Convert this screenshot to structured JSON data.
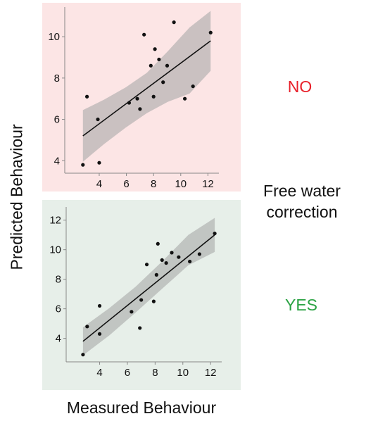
{
  "y_axis_label": "Predicted Behaviour",
  "x_axis_label": "Measured Behaviour",
  "center_label": {
    "line1": "Free water",
    "line2": "correction"
  },
  "panel_labels": {
    "no": {
      "text": "NO",
      "color": "#e8202a"
    },
    "yes": {
      "text": "YES",
      "color": "#2aa243"
    }
  },
  "colors": {
    "top_background": "#fce5e5",
    "bottom_background": "#e7efe9",
    "points": "#111111",
    "fit_line": "#111111",
    "confidence_band": "#a8a8a8"
  },
  "chart_data": [
    {
      "type": "scatter",
      "panel": "NO",
      "xlim": [
        2.5,
        12.6
      ],
      "ylim": [
        3.6,
        11.3
      ],
      "xticks": [
        4,
        6,
        8,
        10,
        12
      ],
      "yticks": [
        4,
        6,
        8,
        10
      ],
      "x": [
        2.8,
        3.1,
        3.9,
        4.0,
        6.2,
        6.8,
        7.0,
        7.3,
        7.8,
        8.0,
        8.1,
        8.4,
        8.7,
        9.0,
        9.5,
        10.3,
        10.9,
        12.2
      ],
      "y": [
        3.8,
        7.1,
        6.0,
        3.9,
        6.8,
        7.0,
        6.5,
        10.1,
        8.6,
        7.1,
        9.4,
        8.9,
        7.8,
        8.6,
        10.7,
        7.0,
        7.6,
        10.2
      ],
      "fit": {
        "x": [
          2.8,
          12.2
        ],
        "y": [
          5.2,
          9.8
        ]
      },
      "band_upper": [
        6.45,
        6.95,
        7.55,
        8.25,
        9.3,
        10.45,
        11.25
      ],
      "band_lower": [
        3.95,
        4.8,
        5.6,
        6.3,
        6.85,
        7.25,
        8.35
      ],
      "band_x": [
        2.8,
        4.35,
        5.95,
        7.5,
        9.05,
        10.65,
        12.2
      ]
    },
    {
      "type": "scatter",
      "panel": "YES",
      "xlim": [
        2.5,
        12.6
      ],
      "ylim": [
        2.6,
        12.7
      ],
      "xticks": [
        4,
        6,
        8,
        10,
        12
      ],
      "yticks": [
        4,
        6,
        8,
        10,
        12
      ],
      "x": [
        2.8,
        3.1,
        4.0,
        4.0,
        6.3,
        6.9,
        7.0,
        7.4,
        7.9,
        8.1,
        8.2,
        8.5,
        8.8,
        9.2,
        9.7,
        10.5,
        11.2,
        12.3
      ],
      "y": [
        2.9,
        4.8,
        6.2,
        4.3,
        5.8,
        4.7,
        6.6,
        9.0,
        6.5,
        8.3,
        10.4,
        9.3,
        9.1,
        9.8,
        9.5,
        9.2,
        9.7,
        11.1
      ],
      "fit": {
        "x": [
          2.8,
          12.3
        ],
        "y": [
          3.8,
          11.0
        ]
      },
      "band_upper": [
        4.75,
        6.05,
        7.5,
        9.2,
        11.0,
        12.15
      ],
      "band_lower": [
        2.85,
        4.2,
        5.75,
        7.35,
        8.95,
        9.85
      ],
      "band_x": [
        2.8,
        4.7,
        6.6,
        8.5,
        10.4,
        12.3
      ]
    }
  ]
}
